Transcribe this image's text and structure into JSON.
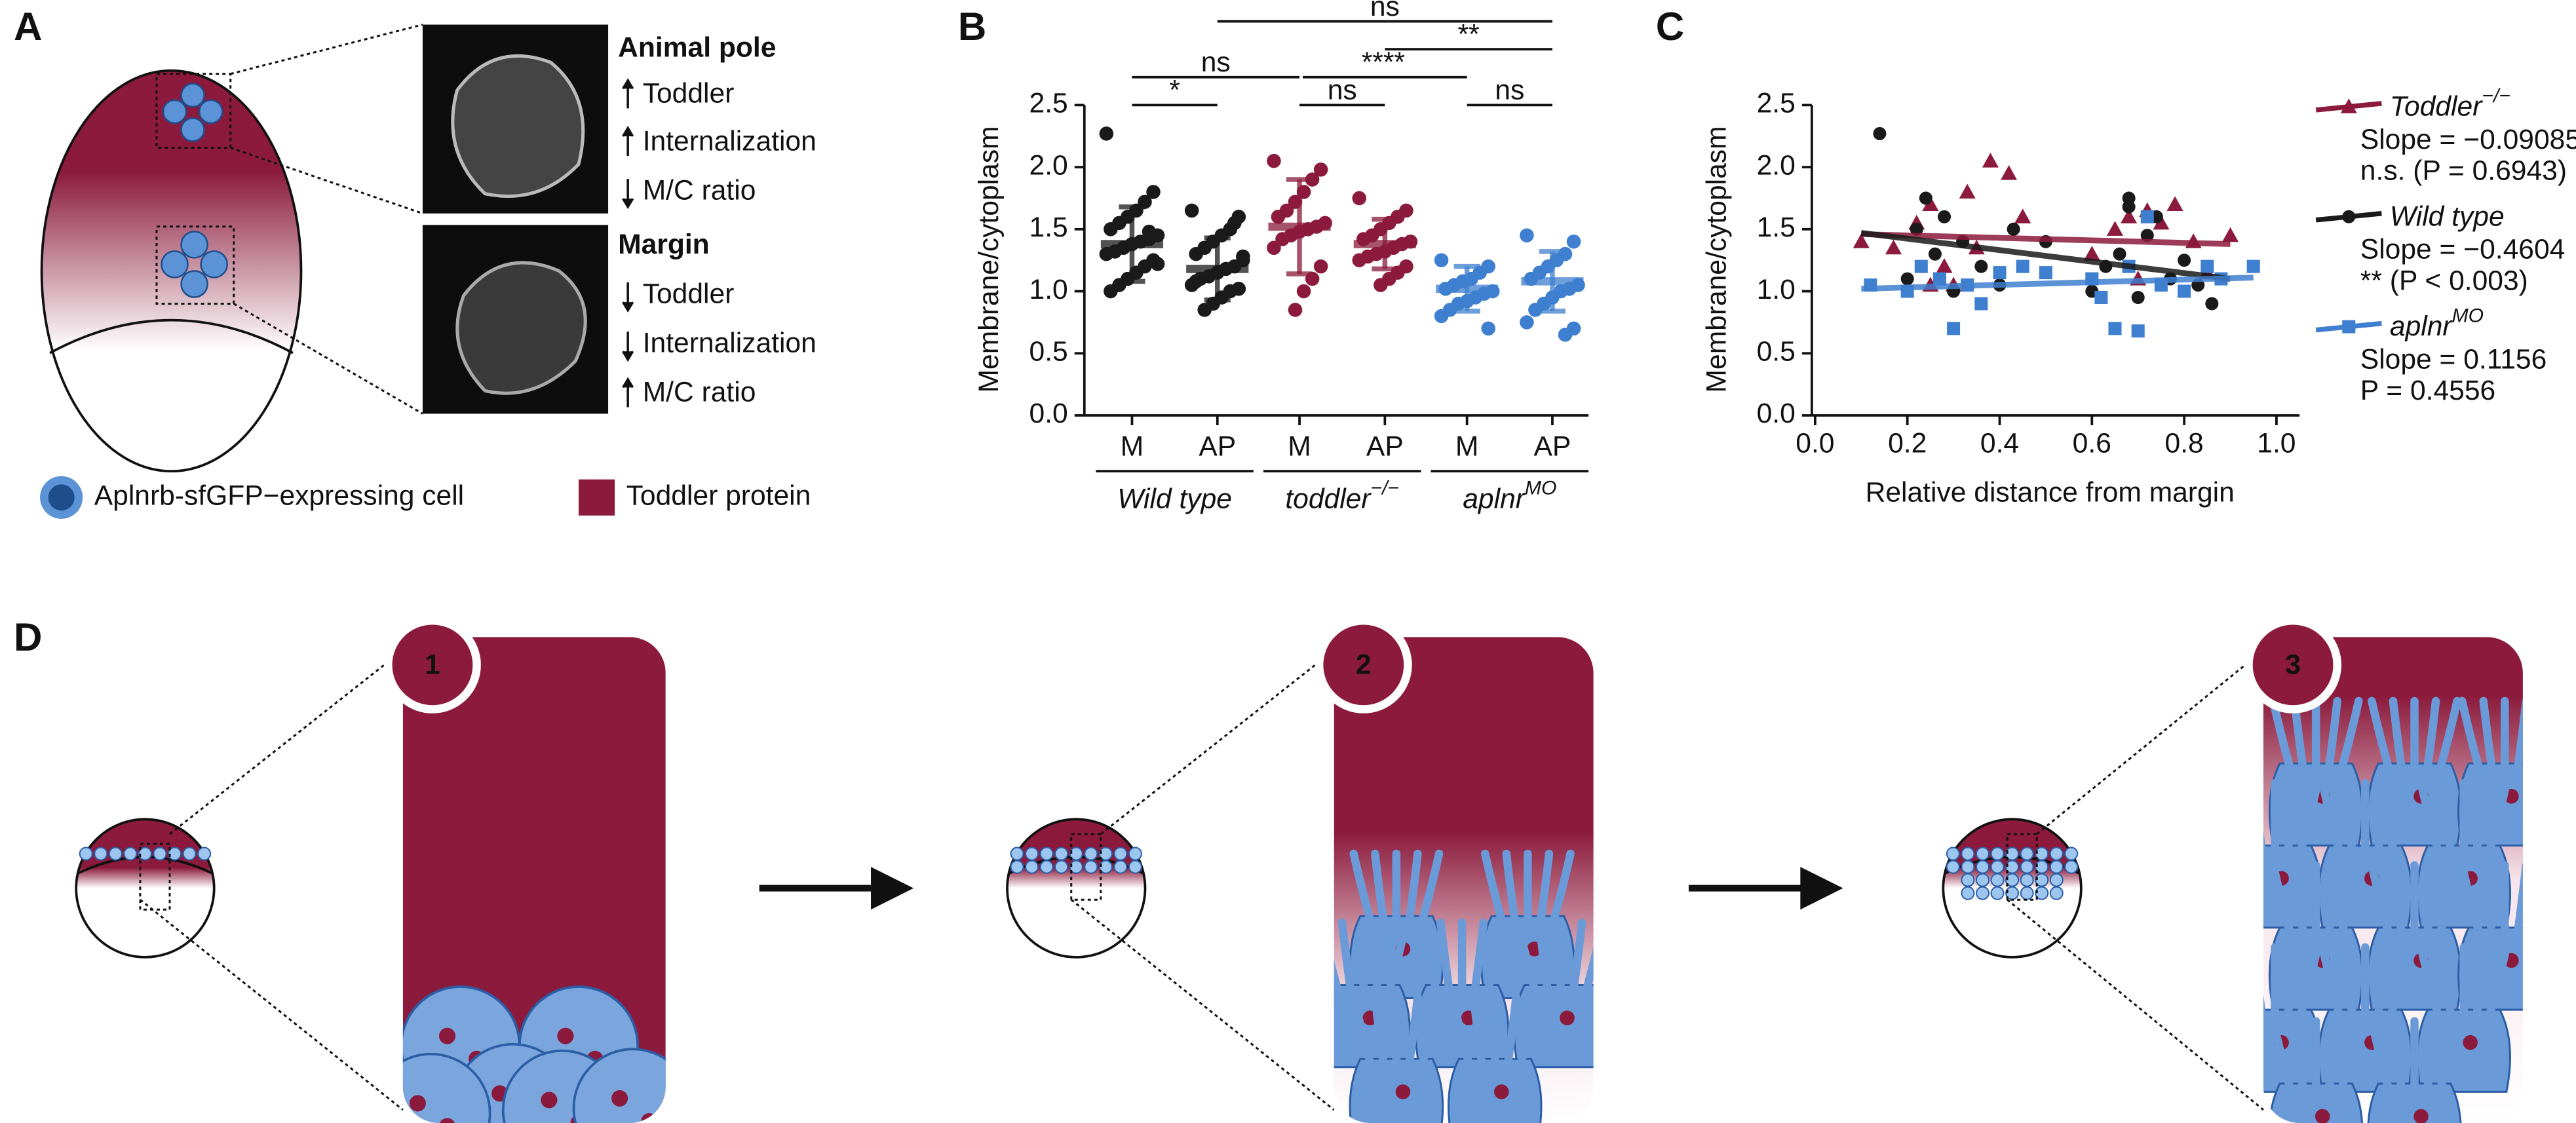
{
  "panel_a": {
    "label": "A",
    "animal_pole": {
      "title": "Animal pole",
      "items": [
        "Toddler",
        "Internalization",
        "M/C ratio"
      ]
    },
    "margin": {
      "title": "Margin",
      "items": [
        "Toddler",
        "Internalization",
        "M/C ratio"
      ]
    },
    "legend": [
      "Aplnrb-sfGFP−expressing cell",
      "Toddler protein"
    ]
  },
  "chart_data": [
    {
      "type": "strip",
      "panel": "B",
      "ylabel": "Membrane/cytoplasm",
      "ylim": [
        0,
        2.5
      ],
      "yticks": [
        {
          "value": 0,
          "label": "0.0"
        },
        {
          "value": 0.5,
          "label": "0.5"
        },
        {
          "value": 1,
          "label": "1.0"
        },
        {
          "value": 1.5,
          "label": "1.5"
        },
        {
          "value": 2,
          "label": "2.0"
        },
        {
          "value": 2.5,
          "label": "2.5"
        }
      ],
      "groups": [
        {
          "label": "Wild type",
          "series": [
            {
              "name": "M",
              "color": "#1a1a1a",
              "values": [
                2.27,
                1.8,
                1.72,
                1.65,
                1.6,
                1.55,
                1.5,
                1.45,
                1.42,
                1.4,
                1.38,
                1.35,
                1.32,
                1.3,
                1.25,
                1.2,
                1.15,
                1.1,
                1.05,
                1.0,
                1.22,
                1.48
              ],
              "mean": 1.38,
              "sd": 0.3
            },
            {
              "name": "AP",
              "color": "#1a1a1a",
              "values": [
                1.65,
                1.6,
                1.5,
                1.45,
                1.4,
                1.35,
                1.3,
                1.25,
                1.2,
                1.18,
                1.15,
                1.12,
                1.1,
                1.05,
                1.02,
                1.0,
                0.95,
                0.9,
                0.85,
                1.08,
                1.28,
                1.55
              ],
              "mean": 1.18,
              "sd": 0.25
            }
          ]
        },
        {
          "label": "toddler",
          "label_sup": "−/−",
          "series": [
            {
              "name": "M",
              "color": "#8b1a3c",
              "values": [
                2.05,
                1.98,
                1.9,
                1.8,
                1.72,
                1.65,
                1.6,
                1.55,
                1.52,
                1.5,
                1.48,
                1.45,
                1.42,
                1.35,
                1.2,
                1.1,
                1.0,
                0.85
              ],
              "mean": 1.52,
              "sd": 0.38
            },
            {
              "name": "AP",
              "color": "#8b1a3c",
              "values": [
                1.75,
                1.65,
                1.6,
                1.55,
                1.5,
                1.45,
                1.42,
                1.4,
                1.38,
                1.35,
                1.32,
                1.3,
                1.28,
                1.25,
                1.2,
                1.15,
                1.1,
                1.05
              ],
              "mean": 1.38,
              "sd": 0.2
            }
          ]
        },
        {
          "label": "aplnr",
          "label_sup": "MO",
          "series": [
            {
              "name": "M",
              "color": "#3f7fcf",
              "values": [
                1.25,
                1.2,
                1.15,
                1.1,
                1.08,
                1.05,
                1.02,
                1.0,
                0.98,
                0.95,
                0.92,
                0.9,
                0.85,
                0.8,
                0.7
              ],
              "mean": 1.02,
              "sd": 0.18
            },
            {
              "name": "AP",
              "color": "#3f7fcf",
              "values": [
                1.45,
                1.4,
                1.3,
                1.25,
                1.2,
                1.15,
                1.1,
                1.05,
                1.02,
                1.0,
                0.95,
                0.9,
                0.85,
                0.75,
                0.7,
                0.65
              ],
              "mean": 1.08,
              "sd": 0.24
            }
          ]
        }
      ],
      "annotations": [
        "*",
        "ns",
        "ns",
        "****",
        "ns",
        "**",
        "ns"
      ]
    },
    {
      "type": "scatter",
      "panel": "C",
      "ylabel": "Membrane/cytoplasm",
      "xlabel": "Relative distance from margin",
      "xlim": [
        0,
        1.05
      ],
      "ylim": [
        0,
        2.5
      ],
      "xticks": [
        {
          "value": 0,
          "label": "0.0"
        },
        {
          "value": 0.2,
          "label": "0.2"
        },
        {
          "value": 0.4,
          "label": "0.4"
        },
        {
          "value": 0.6,
          "label": "0.6"
        },
        {
          "value": 0.8,
          "label": "0.8"
        },
        {
          "value": 1,
          "label": "1.0"
        }
      ],
      "yticks": [
        {
          "value": 0,
          "label": "0.0"
        },
        {
          "value": 0.5,
          "label": "0.5"
        },
        {
          "value": 1,
          "label": "1.0"
        },
        {
          "value": 1.5,
          "label": "1.5"
        },
        {
          "value": 2,
          "label": "2.0"
        },
        {
          "value": 2.5,
          "label": "2.5"
        }
      ],
      "series": [
        {
          "name": "Toddler",
          "name_sup": "−/−",
          "color": "#8b1a3c",
          "marker": "triangle",
          "x": [
            0.1,
            0.17,
            0.22,
            0.25,
            0.28,
            0.3,
            0.35,
            0.38,
            0.42,
            0.45,
            0.6,
            0.65,
            0.68,
            0.7,
            0.72,
            0.75,
            0.78,
            0.82,
            0.85,
            0.9,
            0.25,
            0.33
          ],
          "y": [
            1.4,
            1.35,
            1.55,
            1.7,
            1.2,
            1.05,
            1.35,
            2.05,
            1.95,
            1.6,
            1.3,
            1.5,
            1.6,
            1.1,
            1.65,
            1.55,
            1.7,
            1.4,
            1.15,
            1.45,
            1.05,
            1.8
          ],
          "fit": {
            "x": [
              0.1,
              0.9
            ],
            "y": [
              1.46,
              1.38
            ]
          },
          "slope_label": "Slope = −0.09085",
          "p_label": "n.s. (P = 0.6943)"
        },
        {
          "name": "Wild type",
          "color": "#1a1a1a",
          "marker": "circle",
          "x": [
            0.14,
            0.2,
            0.22,
            0.24,
            0.26,
            0.28,
            0.3,
            0.32,
            0.36,
            0.4,
            0.43,
            0.6,
            0.63,
            0.66,
            0.68,
            0.7,
            0.72,
            0.74,
            0.77,
            0.8,
            0.83,
            0.86,
            0.68,
            0.5
          ],
          "y": [
            2.27,
            1.1,
            1.5,
            1.75,
            1.3,
            1.6,
            1.0,
            1.4,
            1.2,
            1.05,
            1.5,
            1.0,
            1.2,
            1.3,
            1.68,
            0.95,
            1.45,
            1.6,
            1.1,
            1.25,
            1.05,
            0.9,
            1.75,
            1.4
          ],
          "fit": {
            "x": [
              0.1,
              0.9
            ],
            "y": [
              1.47,
              1.1
            ]
          },
          "slope_label": "Slope = −0.4604",
          "p_label": "** (P < 0.003)"
        },
        {
          "name": "aplnr",
          "name_sup": "MO",
          "color": "#3f7fcf",
          "marker": "square",
          "x": [
            0.12,
            0.2,
            0.23,
            0.27,
            0.3,
            0.33,
            0.36,
            0.4,
            0.45,
            0.5,
            0.6,
            0.62,
            0.65,
            0.68,
            0.7,
            0.72,
            0.75,
            0.8,
            0.85,
            0.88,
            0.95
          ],
          "y": [
            1.05,
            1.0,
            1.2,
            1.1,
            0.7,
            1.05,
            0.9,
            1.15,
            1.2,
            1.15,
            1.1,
            0.95,
            0.7,
            1.2,
            0.68,
            1.6,
            1.05,
            1.0,
            1.2,
            1.1,
            1.2
          ],
          "fit": {
            "x": [
              0.1,
              0.95
            ],
            "y": [
              1.02,
              1.11
            ]
          },
          "slope_label": "Slope = 0.1156",
          "p_label": "P = 0.4556"
        }
      ]
    }
  ],
  "panel_d": {
    "label": "D",
    "steps": [
      "1",
      "2",
      "3"
    ]
  }
}
